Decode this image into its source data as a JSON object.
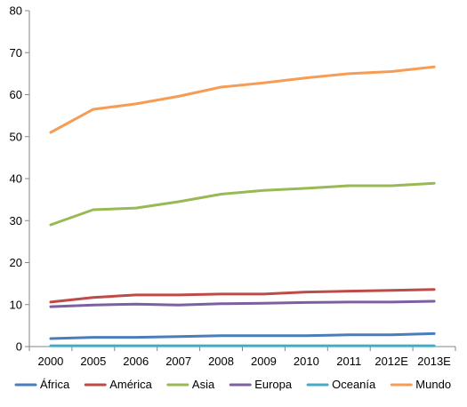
{
  "chart_data": {
    "type": "line",
    "categories": [
      "2000",
      "2005",
      "2006",
      "2007",
      "2008",
      "2009",
      "2010",
      "2011",
      "2012E",
      "2013E"
    ],
    "ylim": [
      0,
      80
    ],
    "yticks": [
      0,
      10,
      20,
      30,
      40,
      50,
      60,
      70,
      80
    ],
    "grid": false,
    "legend_position": "bottom",
    "series": [
      {
        "name": "África",
        "color": "#4A7EBB",
        "values": [
          1.9,
          2.2,
          2.2,
          2.4,
          2.6,
          2.6,
          2.6,
          2.8,
          2.8,
          3.1
        ]
      },
      {
        "name": "América",
        "color": "#BE4B48",
        "values": [
          10.6,
          11.7,
          12.3,
          12.3,
          12.5,
          12.5,
          13.0,
          13.2,
          13.4,
          13.6
        ]
      },
      {
        "name": "Asia",
        "color": "#98B954",
        "values": [
          29.0,
          32.6,
          33.0,
          34.5,
          36.3,
          37.2,
          37.7,
          38.3,
          38.3,
          38.9
        ]
      },
      {
        "name": "Europa",
        "color": "#7D60A0",
        "values": [
          9.5,
          9.9,
          10.1,
          9.9,
          10.2,
          10.3,
          10.5,
          10.6,
          10.6,
          10.8
        ]
      },
      {
        "name": "Oceanía",
        "color": "#46AAC5",
        "values": [
          0.2,
          0.2,
          0.2,
          0.2,
          0.2,
          0.2,
          0.2,
          0.2,
          0.2,
          0.2
        ]
      },
      {
        "name": "Mundo",
        "color": "#F59D56",
        "values": [
          51.0,
          56.5,
          57.8,
          59.6,
          61.8,
          62.8,
          64.0,
          65.0,
          65.5,
          66.6
        ]
      }
    ]
  }
}
